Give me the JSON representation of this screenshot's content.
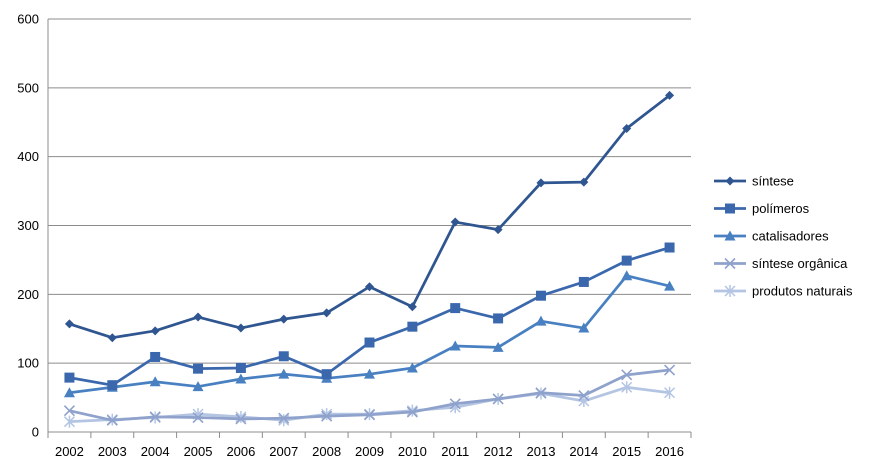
{
  "chart_data": {
    "type": "line",
    "title": "",
    "xlabel": "",
    "ylabel": "",
    "x": [
      "2002",
      "2003",
      "2004",
      "2005",
      "2006",
      "2007",
      "2008",
      "2009",
      "2010",
      "2011",
      "2012",
      "2013",
      "2014",
      "2015",
      "2016"
    ],
    "ylim": [
      0,
      600
    ],
    "yticks": [
      0,
      100,
      200,
      300,
      400,
      500,
      600
    ],
    "grid": "horizontal",
    "legend_position": "right",
    "series": [
      {
        "name": "síntese",
        "marker": "diamond",
        "color": "#2f5690",
        "values": [
          157,
          137,
          147,
          167,
          151,
          164,
          173,
          211,
          182,
          305,
          294,
          362,
          363,
          441,
          489
        ]
      },
      {
        "name": "polímeros",
        "marker": "square",
        "color": "#3b68ad",
        "values": [
          79,
          68,
          109,
          92,
          93,
          110,
          84,
          130,
          153,
          180,
          165,
          198,
          218,
          249,
          268
        ]
      },
      {
        "name": "catalisadores",
        "marker": "triangle",
        "color": "#4880c2",
        "values": [
          57,
          65,
          73,
          66,
          77,
          84,
          78,
          84,
          93,
          125,
          123,
          161,
          151,
          227,
          212
        ]
      },
      {
        "name": "síntese orgânica",
        "marker": "x",
        "color": "#8fa2cc",
        "values": [
          31,
          17,
          22,
          21,
          19,
          20,
          23,
          25,
          29,
          41,
          48,
          57,
          53,
          83,
          90
        ]
      },
      {
        "name": "produtos naturais",
        "marker": "star",
        "color": "#b4c5e3",
        "values": [
          15,
          18,
          21,
          26,
          22,
          17,
          26,
          26,
          31,
          36,
          48,
          56,
          45,
          65,
          57
        ]
      }
    ]
  }
}
